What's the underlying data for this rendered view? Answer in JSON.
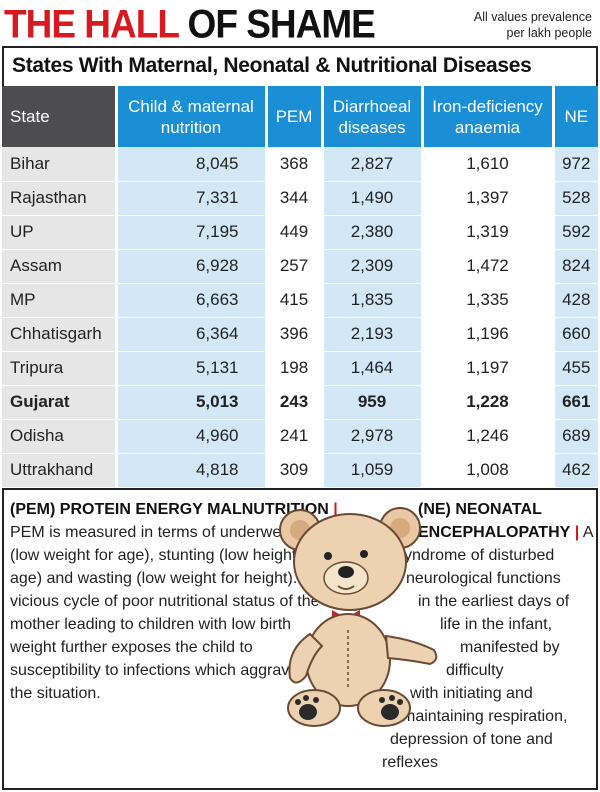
{
  "header": {
    "title_part1": "THE HALL",
    "title_part2": "OF SHAME",
    "note_line1": "All values prevalence",
    "note_line2": "per lakh people"
  },
  "subtitle": "States With Maternal, Neonatal & Nutritional Diseases",
  "table": {
    "columns": [
      "State",
      "Child & maternal nutrition",
      "PEM",
      "Diarrhoeal diseases",
      "Iron-deficiency anaemia",
      "NE"
    ],
    "column_lines": [
      [
        "State"
      ],
      [
        "Child & maternal",
        "nutrition"
      ],
      [
        "PEM"
      ],
      [
        "Diarrhoeal",
        "diseases"
      ],
      [
        "Iron-deficiency",
        "anaemia"
      ],
      [
        "NE"
      ]
    ],
    "rows": [
      [
        "Bihar",
        "8,045",
        "368",
        "2,827",
        "1,610",
        "972"
      ],
      [
        "Rajasthan",
        "7,331",
        "344",
        "1,490",
        "1,397",
        "528"
      ],
      [
        "UP",
        "7,195",
        "449",
        "2,380",
        "1,319",
        "592"
      ],
      [
        "Assam",
        "6,928",
        "257",
        "2,309",
        "1,472",
        "824"
      ],
      [
        "MP",
        "6,663",
        "415",
        "1,835",
        "1,335",
        "428"
      ],
      [
        "Chhatisgarh",
        "6,364",
        "396",
        "2,193",
        "1,196",
        "660"
      ],
      [
        "Tripura",
        "5,131",
        "198",
        "1,464",
        "1,197",
        "455"
      ],
      [
        "Gujarat",
        "5,013",
        "243",
        "959",
        "1,228",
        "661"
      ],
      [
        "Odisha",
        "4,960",
        "241",
        "2,978",
        "1,246",
        "689"
      ],
      [
        "Uttrakhand",
        "4,818",
        "309",
        "1,059",
        "1,008",
        "462"
      ]
    ],
    "highlighted_row": "Gujarat"
  },
  "pem_note": {
    "heading": "(PEM) PROTEIN ENERGY MALNUTRITION",
    "separator": "|",
    "body": "PEM is measured in terms of underweight (low weight for age), stunting (low height for age) and wasting (low weight for height). The vicious cycle of poor nutritional status of the mother leading to children with low birth weight further exposes the child to susceptibility to infections which aggravates the situation."
  },
  "ne_note": {
    "heading_line1": "(NE) NEONATAL",
    "heading_line2": "ENCEPHALOPATHY",
    "separator": "|",
    "first_word": "A",
    "lines": [
      "syndrome of disturbed",
      "neurological functions",
      "in the earliest days of",
      "life in the infant,",
      "manifested by",
      "difficulty",
      "with initiating and",
      "maintaining respiration,",
      "depression of tone and",
      "reflexes"
    ]
  },
  "illustration": "teddy-bear",
  "colors": {
    "title_red": "#d71920",
    "header_blue": "#1b8fd6",
    "header_gray": "#4d4d4f",
    "cell_blue": "#d2e8f7",
    "cell_gray": "#e6e6e7"
  }
}
